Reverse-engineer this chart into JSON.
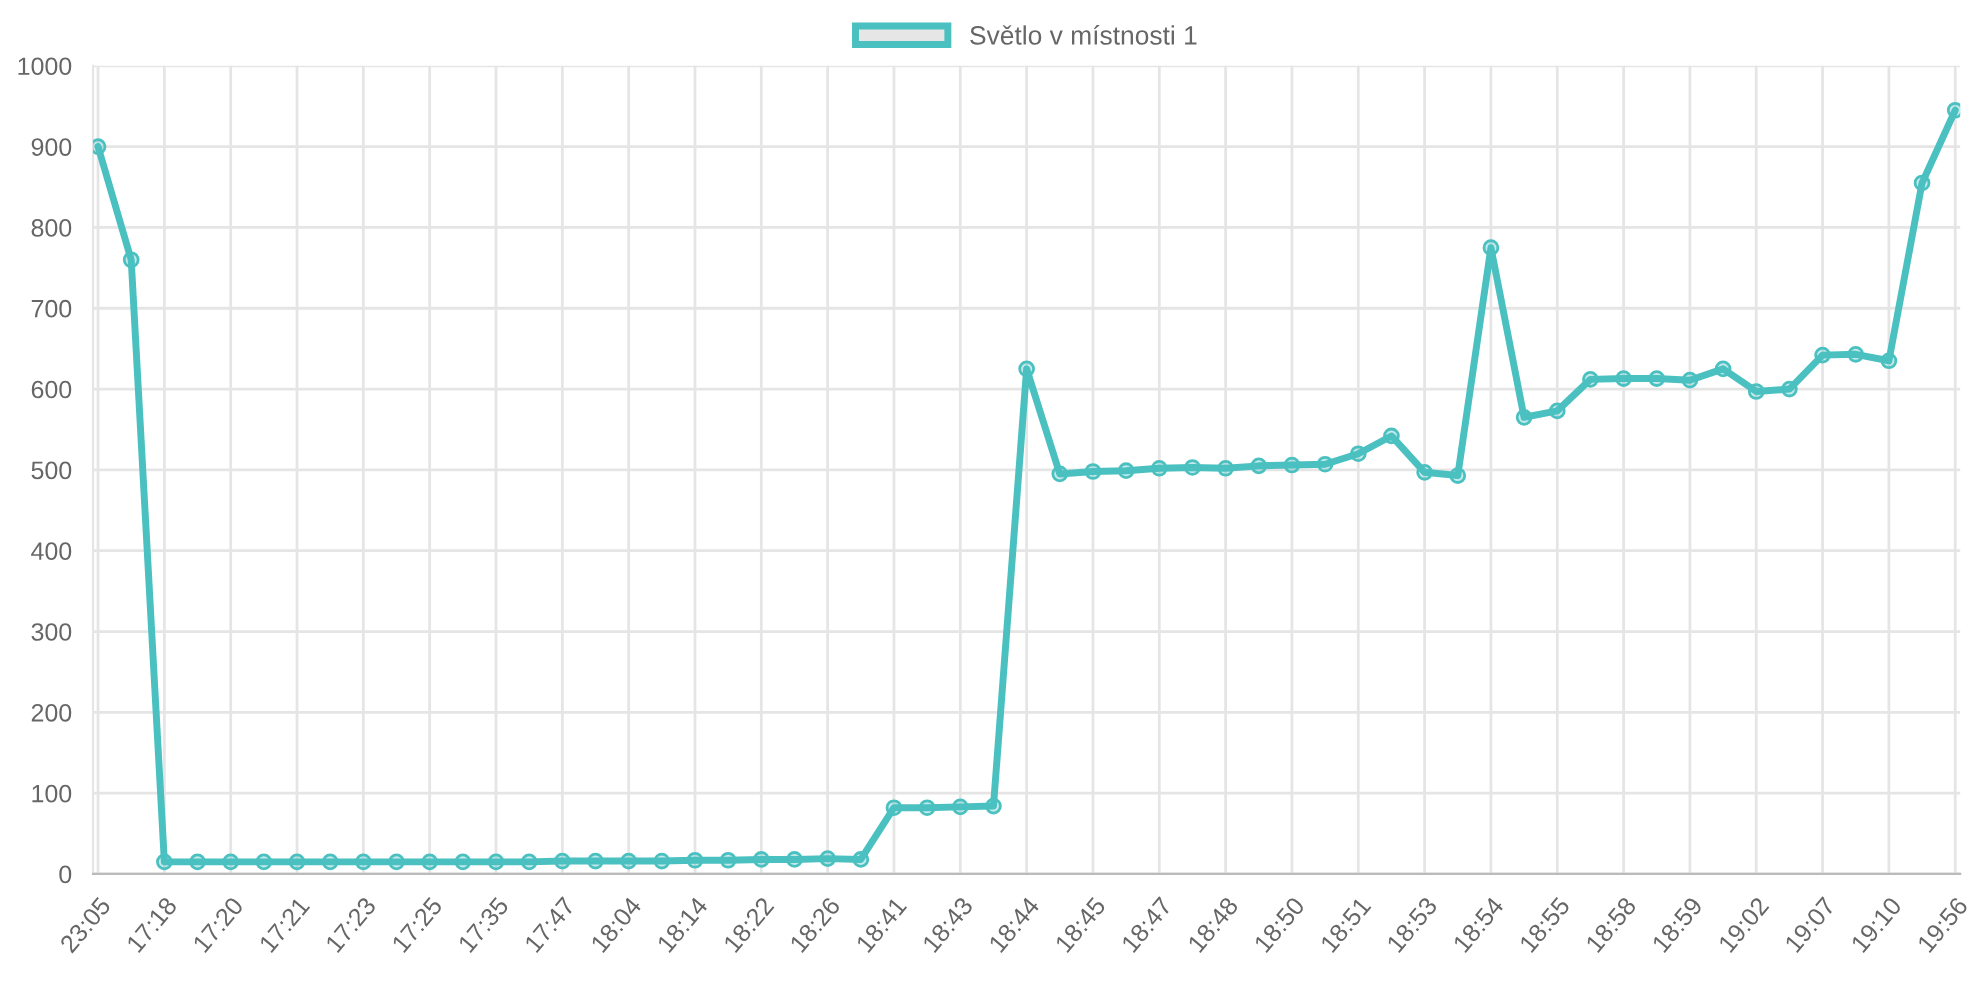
{
  "chart_data": {
    "type": "line",
    "categories": [
      "23:05",
      null,
      "17:18",
      null,
      "17:20",
      null,
      "17:21",
      null,
      "17:23",
      null,
      "17:25",
      null,
      "17:35",
      null,
      "17:47",
      null,
      "18:04",
      null,
      "18:14",
      null,
      "18:22",
      null,
      "18:26",
      null,
      "18:41",
      null,
      "18:43",
      null,
      "18:44",
      null,
      "18:45",
      null,
      "18:47",
      null,
      "18:48",
      null,
      "18:50",
      null,
      "18:51",
      null,
      "18:53",
      null,
      "18:54",
      null,
      "18:55",
      null,
      "18:58",
      null,
      "18:59",
      null,
      "19:02",
      null,
      "19:07",
      null,
      "19:10",
      null,
      "19:56"
    ],
    "series": [
      {
        "name": "Světlo v místnosti 1",
        "color": "#4bc0c0",
        "values": [
          900,
          760,
          15,
          15,
          15,
          15,
          15,
          15,
          15,
          15,
          15,
          15,
          15,
          15,
          16,
          16,
          16,
          16,
          17,
          17,
          18,
          18,
          19,
          18,
          82,
          82,
          83,
          84,
          625,
          495,
          498,
          499,
          502,
          503,
          502,
          505,
          506,
          507,
          520,
          542,
          497,
          493,
          775,
          565,
          573,
          612,
          613,
          613,
          611,
          625,
          597,
          600,
          642,
          643,
          635,
          855,
          945
        ]
      }
    ],
    "ylim": [
      0,
      1000
    ],
    "yticks": [
      0,
      100,
      200,
      300,
      400,
      500,
      600,
      700,
      800,
      900,
      1000
    ],
    "grid": true,
    "legend": "top",
    "marker": "circle",
    "line_style": "solid"
  }
}
